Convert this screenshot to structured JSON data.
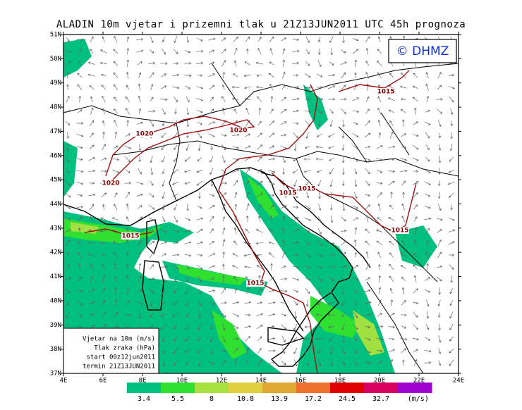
{
  "header": {
    "title": "ALADIN 10m vjetar i prizemni tlak u 21Z13JUN2011 UTC 45h prognoza",
    "logo": "© DHMZ"
  },
  "map": {
    "lat_labels": [
      "51N",
      "50N",
      "49N",
      "48N",
      "47N",
      "46N",
      "45N",
      "44N",
      "43N",
      "42N",
      "41N",
      "40N",
      "39N",
      "38N",
      "37N"
    ],
    "lon_labels": [
      "4E",
      "6E",
      "8E",
      "10E",
      "12E",
      "14E",
      "16E",
      "18E",
      "20E",
      "22E",
      "24E"
    ],
    "isobar_labels": [
      "1015",
      "1020",
      "1020",
      "1020",
      "1015",
      "1015",
      "1015",
      "1015",
      "1015"
    ]
  },
  "info_box": {
    "lines": [
      "Vjetar na 10m (m/s)",
      "Tlak zraka (hPa)",
      "start 00z12jun2011",
      "termin 21Z13JUN2011"
    ]
  },
  "colorbar": {
    "levels": [
      "3.4",
      "5.5",
      "8",
      "10.8",
      "13.9",
      "17.2",
      "24.5",
      "32.7"
    ],
    "colors": [
      "#00c080",
      "#30e030",
      "#a8e040",
      "#e0d040",
      "#e0a830",
      "#f07030",
      "#e00000",
      "#d80060",
      "#a000d0"
    ],
    "unit": "(m/s)"
  }
}
